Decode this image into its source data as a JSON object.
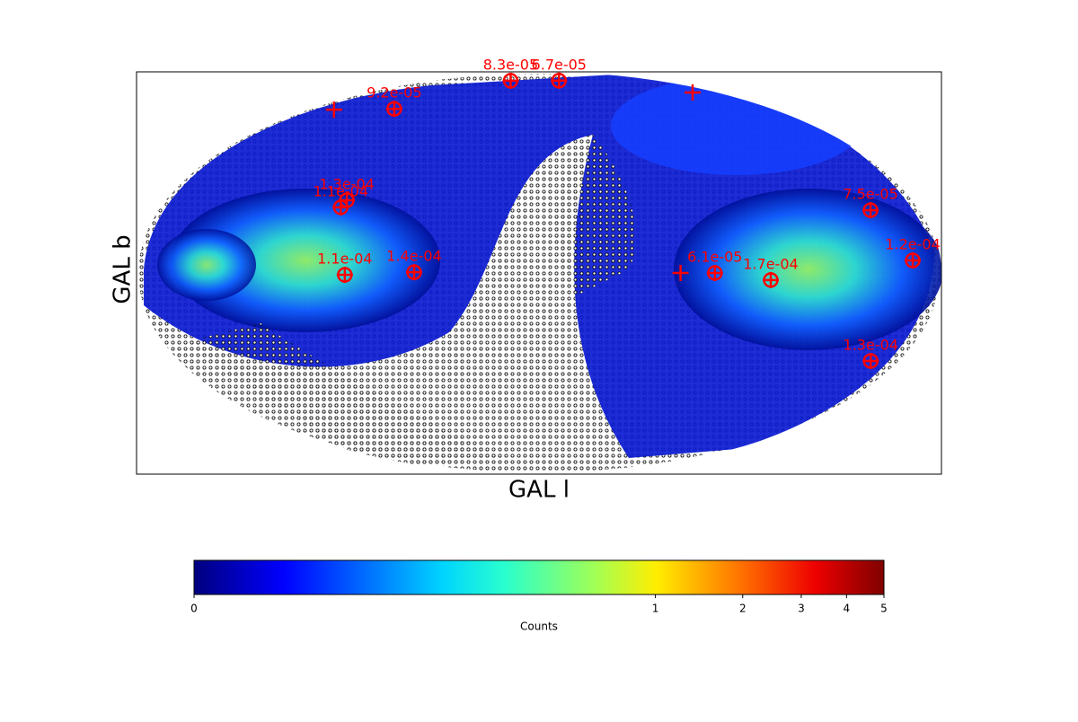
{
  "chart_data": {
    "type": "scatter",
    "projection": "hammer",
    "xlabel": "GAL l",
    "ylabel": "GAL b",
    "xlim": [
      -180,
      180
    ],
    "ylim": [
      -90,
      90
    ],
    "marker_color": "#ff0000",
    "x": [
      -83.8,
      64.0,
      -125.2,
      -87.3,
      -88.4,
      152.4,
      164.6,
      -79.8,
      -50.7,
      72.0,
      96.2,
      163.2,
      -162.6,
      165.8,
      57.6
    ],
    "values": [
      83.7,
      84.4,
      63.6,
      27.6,
      24.8,
      20.2,
      3.8,
      -0.7,
      0.3,
      0.0,
      -2.6,
      -27.7,
      57.6,
      66.8,
      0.0
    ],
    "annotations": [
      "8.3e-05",
      "6.7e-05",
      "9.2e-05",
      "1.3e-04",
      "1.1e-04",
      "7.5e-05",
      "1.2e-04",
      "1.1e-04",
      "1.4e-04",
      "6.1e-05",
      "1.7e-04",
      "1.3e-04",
      null,
      null,
      null
    ],
    "colorbar": {
      "label": "Counts",
      "colormap": "jet",
      "lim": [
        0,
        5
      ],
      "ticks": [
        0,
        1,
        2,
        3,
        4,
        5
      ],
      "power": 0.25
    }
  }
}
